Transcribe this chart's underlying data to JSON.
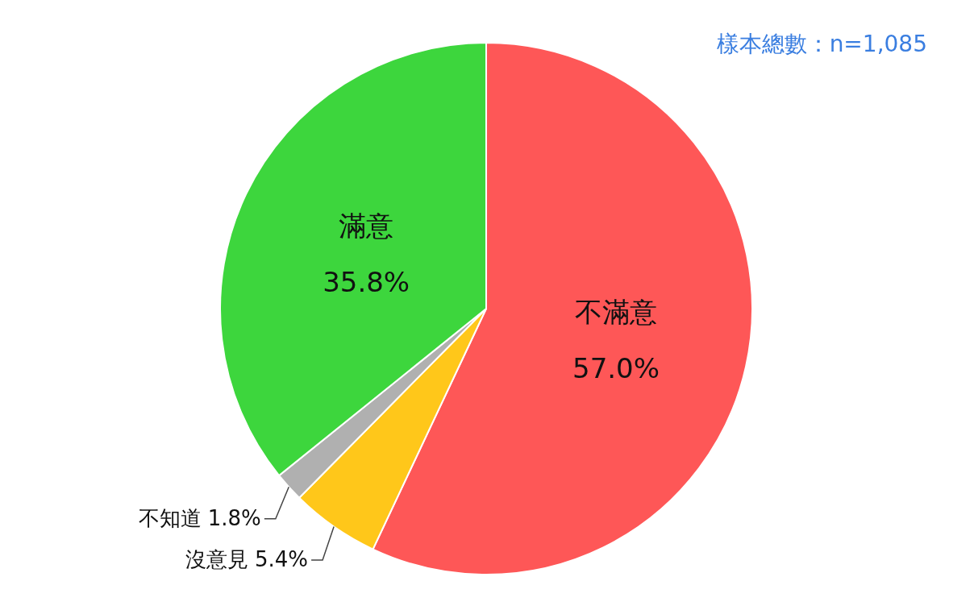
{
  "chart_data": {
    "type": "pie",
    "categories": [
      "不滿意",
      "沒意見",
      "不知道",
      "滿意"
    ],
    "values": [
      57.0,
      5.4,
      1.8,
      35.8
    ],
    "colors": [
      "#fe5757",
      "#ffc71a",
      "#b0b0b0",
      "#3dd63d"
    ],
    "value_labels": [
      "57.0%",
      "5.4%",
      "1.8%",
      "35.8%"
    ],
    "annotations": [
      "樣本總數：n=1,085"
    ]
  }
}
